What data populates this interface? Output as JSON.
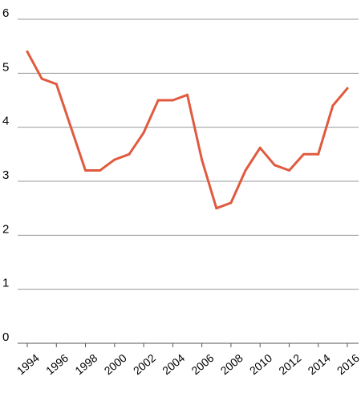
{
  "chart_data": {
    "type": "line",
    "title": "",
    "xlabel": "",
    "ylabel": "",
    "x": [
      1994,
      1995,
      1996,
      1997,
      1998,
      1999,
      2000,
      2001,
      2002,
      2003,
      2004,
      2005,
      2006,
      2007,
      2008,
      2009,
      2010,
      2011,
      2012,
      2013,
      2014,
      2015,
      2016
    ],
    "series": [
      {
        "values": [
          5.4,
          4.9,
          4.8,
          4.0,
          3.2,
          3.2,
          3.4,
          3.5,
          3.9,
          4.5,
          4.5,
          4.6,
          3.4,
          2.5,
          2.6,
          3.2,
          3.62,
          3.3,
          3.2,
          3.5,
          3.5,
          4.4,
          4.72
        ],
        "color": "#e05a3f"
      }
    ],
    "xticks": [
      "1994",
      "1996",
      "1998",
      "2000",
      "2002",
      "2004",
      "2006",
      "2008",
      "2010",
      "2012",
      "2014",
      "2016"
    ],
    "yticks": [
      "0",
      "1",
      "2",
      "3",
      "4",
      "5",
      "6"
    ],
    "ylim": [
      0,
      6
    ],
    "xlim": [
      1994,
      2016
    ],
    "grid": "horizontal",
    "legend": "none",
    "gridline_color": "#999999",
    "axis_color": "#555555"
  }
}
